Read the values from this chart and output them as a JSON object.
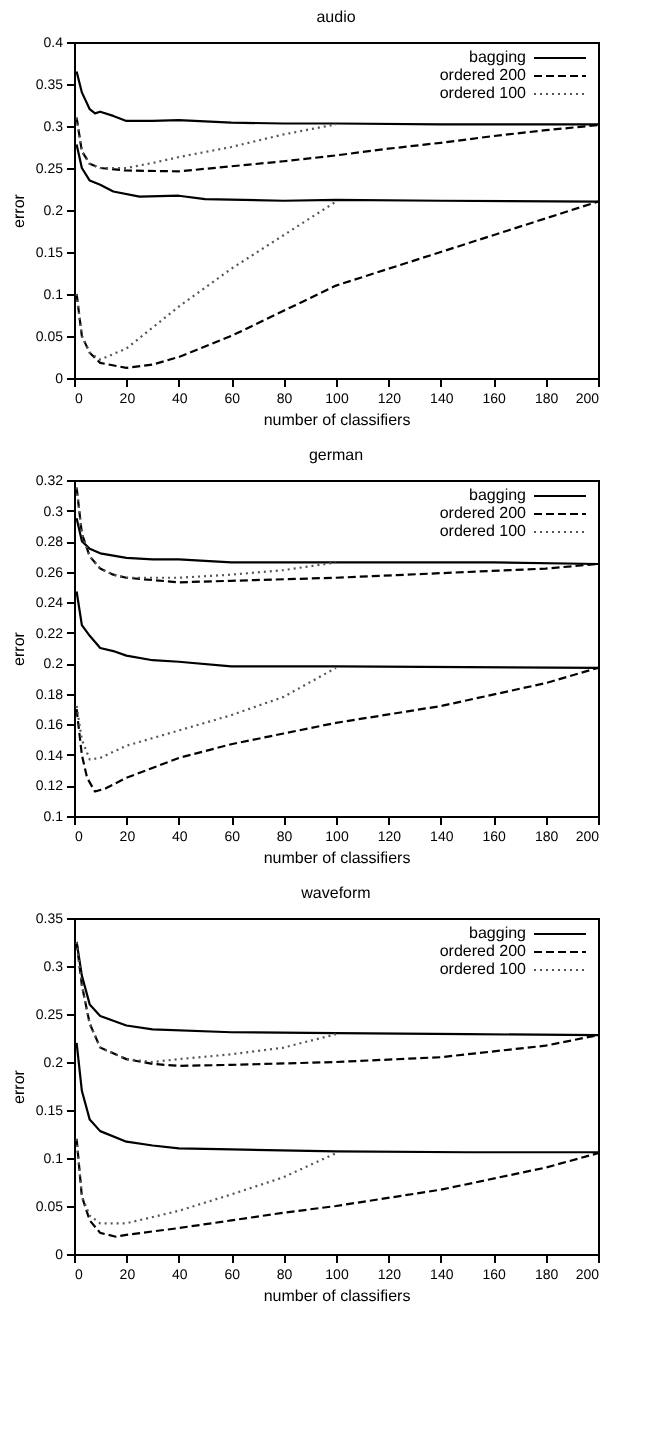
{
  "chart_data": [
    {
      "type": "line",
      "title": "audio",
      "xlabel": "number of classifiers",
      "ylabel": "error",
      "xlim": [
        0,
        200
      ],
      "xticks": [
        0,
        20,
        40,
        60,
        80,
        100,
        120,
        140,
        160,
        180,
        200
      ],
      "ylim": [
        0,
        0.4
      ],
      "yticks": [
        0,
        0.05,
        0.1,
        0.15,
        0.2,
        0.25,
        0.3,
        0.35,
        0.4
      ],
      "grid": false,
      "legend": "top right",
      "marker": "none",
      "series": [
        {
          "name": "bagging",
          "color": "#000000",
          "line_style": "solid",
          "x": [
            1,
            3,
            6,
            8,
            10,
            15,
            20,
            30,
            40,
            60,
            80,
            100,
            140,
            200
          ],
          "values": [
            0.365,
            0.34,
            0.32,
            0.315,
            0.317,
            0.312,
            0.306,
            0.306,
            0.307,
            0.304,
            0.303,
            0.303,
            0.302,
            0.302
          ]
        },
        {
          "color": "#000000",
          "line_style": "solid",
          "x": [
            1,
            3,
            6,
            10,
            15,
            25,
            40,
            50,
            80,
            100,
            140,
            200
          ],
          "values": [
            0.278,
            0.25,
            0.235,
            0.23,
            0.222,
            0.216,
            0.217,
            0.213,
            0.211,
            0.212,
            0.211,
            0.21
          ]
        },
        {
          "name": "ordered 200",
          "color": "#000000",
          "line_style": "dashed",
          "x": [
            1,
            3,
            6,
            10,
            20,
            40,
            60,
            80,
            100,
            120,
            140,
            160,
            180,
            200
          ],
          "values": [
            0.31,
            0.27,
            0.255,
            0.25,
            0.247,
            0.246,
            0.252,
            0.258,
            0.265,
            0.273,
            0.28,
            0.288,
            0.295,
            0.301
          ]
        },
        {
          "name": "ordered 100",
          "color": "#555555",
          "line_style": "dotted",
          "x": [
            1,
            3,
            6,
            10,
            20,
            30,
            40,
            60,
            80,
            100
          ],
          "values": [
            0.31,
            0.27,
            0.255,
            0.25,
            0.25,
            0.256,
            0.263,
            0.275,
            0.29,
            0.302
          ]
        },
        {
          "color": "#000000",
          "line_style": "dashed",
          "x": [
            1,
            3,
            6,
            10,
            20,
            30,
            40,
            60,
            80,
            100,
            120,
            140,
            160,
            180,
            200
          ],
          "values": [
            0.1,
            0.05,
            0.03,
            0.018,
            0.012,
            0.016,
            0.025,
            0.05,
            0.08,
            0.11,
            0.13,
            0.15,
            0.17,
            0.19,
            0.21
          ]
        },
        {
          "color": "#555555",
          "line_style": "dotted",
          "x": [
            1,
            3,
            6,
            10,
            20,
            30,
            40,
            60,
            80,
            100
          ],
          "values": [
            0.1,
            0.05,
            0.03,
            0.022,
            0.035,
            0.06,
            0.085,
            0.13,
            0.17,
            0.21
          ]
        }
      ]
    },
    {
      "type": "line",
      "title": "german",
      "xlabel": "number of classifiers",
      "ylabel": "error",
      "xlim": [
        0,
        200
      ],
      "xticks": [
        0,
        20,
        40,
        60,
        80,
        100,
        120,
        140,
        160,
        180,
        200
      ],
      "ylim": [
        0.1,
        0.32
      ],
      "yticks": [
        0.1,
        0.12,
        0.14,
        0.16,
        0.18,
        0.2,
        0.22,
        0.24,
        0.26,
        0.28,
        0.3,
        0.32
      ],
      "grid": false,
      "legend": "top right",
      "marker": "none",
      "series": [
        {
          "name": "bagging",
          "color": "#000000",
          "line_style": "solid",
          "x": [
            1,
            3,
            6,
            10,
            20,
            30,
            40,
            60,
            100,
            160,
            200
          ],
          "values": [
            0.295,
            0.28,
            0.275,
            0.272,
            0.269,
            0.268,
            0.268,
            0.266,
            0.266,
            0.266,
            0.265
          ]
        },
        {
          "color": "#000000",
          "line_style": "solid",
          "x": [
            1,
            3,
            6,
            10,
            15,
            20,
            30,
            40,
            60,
            100,
            200
          ],
          "values": [
            0.247,
            0.225,
            0.218,
            0.21,
            0.208,
            0.205,
            0.202,
            0.201,
            0.198,
            0.198,
            0.197
          ]
        },
        {
          "name": "ordered 200",
          "color": "#000000",
          "line_style": "dashed",
          "x": [
            1,
            3,
            6,
            10,
            15,
            20,
            40,
            60,
            100,
            140,
            180,
            200
          ],
          "values": [
            0.315,
            0.285,
            0.27,
            0.262,
            0.258,
            0.256,
            0.253,
            0.254,
            0.256,
            0.259,
            0.262,
            0.265
          ]
        },
        {
          "name": "ordered 100",
          "color": "#555555",
          "line_style": "dotted",
          "x": [
            1,
            3,
            6,
            10,
            15,
            20,
            30,
            40,
            60,
            80,
            100
          ],
          "values": [
            0.315,
            0.285,
            0.27,
            0.262,
            0.258,
            0.256,
            0.256,
            0.256,
            0.258,
            0.261,
            0.266
          ]
        },
        {
          "color": "#000000",
          "line_style": "dashed",
          "x": [
            1,
            3,
            5,
            8,
            12,
            20,
            40,
            60,
            80,
            100,
            140,
            180,
            200
          ],
          "values": [
            0.17,
            0.14,
            0.125,
            0.116,
            0.118,
            0.125,
            0.138,
            0.147,
            0.154,
            0.161,
            0.172,
            0.187,
            0.197
          ]
        },
        {
          "color": "#555555",
          "line_style": "dotted",
          "x": [
            1,
            3,
            6,
            10,
            20,
            40,
            60,
            80,
            100
          ],
          "values": [
            0.172,
            0.15,
            0.137,
            0.138,
            0.146,
            0.156,
            0.166,
            0.178,
            0.197
          ]
        }
      ]
    },
    {
      "type": "line",
      "title": "waveform",
      "xlabel": "number of classifiers",
      "ylabel": "error",
      "xlim": [
        0,
        200
      ],
      "xticks": [
        0,
        20,
        40,
        60,
        80,
        100,
        120,
        140,
        160,
        180,
        200
      ],
      "ylim": [
        0,
        0.35
      ],
      "yticks": [
        0,
        0.05,
        0.1,
        0.15,
        0.2,
        0.25,
        0.3,
        0.35
      ],
      "grid": false,
      "legend": "top right",
      "marker": "none",
      "series": [
        {
          "name": "bagging",
          "color": "#000000",
          "line_style": "solid",
          "x": [
            1,
            3,
            6,
            10,
            15,
            20,
            30,
            60,
            100,
            150,
            200
          ],
          "values": [
            0.325,
            0.29,
            0.26,
            0.248,
            0.243,
            0.238,
            0.234,
            0.231,
            0.23,
            0.229,
            0.228
          ]
        },
        {
          "color": "#000000",
          "line_style": "solid",
          "x": [
            1,
            3,
            6,
            10,
            20,
            30,
            40,
            60,
            100,
            150,
            200
          ],
          "values": [
            0.22,
            0.17,
            0.14,
            0.128,
            0.117,
            0.113,
            0.11,
            0.109,
            0.107,
            0.106,
            0.106
          ]
        },
        {
          "name": "ordered 200",
          "color": "#000000",
          "line_style": "dashed",
          "x": [
            1,
            3,
            6,
            10,
            20,
            30,
            40,
            60,
            100,
            140,
            180,
            200
          ],
          "values": [
            0.325,
            0.28,
            0.24,
            0.215,
            0.203,
            0.198,
            0.196,
            0.197,
            0.2,
            0.205,
            0.217,
            0.228
          ]
        },
        {
          "name": "ordered 100",
          "color": "#555555",
          "line_style": "dotted",
          "x": [
            1,
            3,
            6,
            10,
            20,
            30,
            40,
            60,
            80,
            100
          ],
          "values": [
            0.325,
            0.28,
            0.24,
            0.215,
            0.203,
            0.2,
            0.203,
            0.208,
            0.215,
            0.229
          ]
        },
        {
          "color": "#000000",
          "line_style": "dashed",
          "x": [
            1,
            3,
            6,
            10,
            16,
            20,
            40,
            60,
            80,
            100,
            140,
            180,
            200
          ],
          "values": [
            0.12,
            0.06,
            0.035,
            0.022,
            0.018,
            0.02,
            0.027,
            0.035,
            0.043,
            0.05,
            0.067,
            0.09,
            0.105
          ]
        },
        {
          "color": "#555555",
          "line_style": "dotted",
          "x": [
            1,
            3,
            6,
            10,
            20,
            40,
            60,
            80,
            100
          ],
          "values": [
            0.12,
            0.06,
            0.04,
            0.032,
            0.032,
            0.045,
            0.062,
            0.08,
            0.105
          ]
        }
      ]
    }
  ]
}
